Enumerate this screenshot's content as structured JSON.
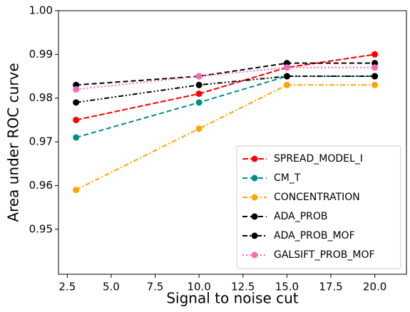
{
  "chart_data": {
    "type": "line",
    "x_label": "Signal to noise cut",
    "y_label": "Area under ROC curve",
    "x": [
      3,
      10,
      15,
      20
    ],
    "series": [
      {
        "name": "SPREAD_MODEL_I",
        "color": "#ff0000",
        "linestyle": "dashed-long",
        "values": [
          0.975,
          0.981,
          0.987,
          0.99
        ]
      },
      {
        "name": "CM_T",
        "color": "#008b8b",
        "linestyle": "dashed",
        "values": [
          0.971,
          0.979,
          0.985,
          0.985
        ]
      },
      {
        "name": "CONCENTRATION",
        "color": "#ffa500",
        "linestyle": "dashdot",
        "values": [
          0.959,
          0.973,
          0.983,
          0.983
        ]
      },
      {
        "name": "ADA_PROB",
        "color": "#000000",
        "linestyle": "dashed",
        "values": [
          0.983,
          0.985,
          0.988,
          0.988
        ]
      },
      {
        "name": "ADA_PROB_MOF",
        "color": "#000000",
        "linestyle": "dashdotdot",
        "values": [
          0.979,
          0.983,
          0.985,
          0.985
        ]
      },
      {
        "name": "GALSIFT_PROB_MOF",
        "color": "#ff69b4",
        "linestyle": "dotted",
        "values": [
          0.982,
          0.985,
          0.987,
          0.987
        ]
      }
    ],
    "xlim": [
      2.0,
      21.8
    ],
    "ylim": [
      0.9397,
      1.0
    ],
    "xticks": [
      2.5,
      {
        "value": 5,
        "label": "5.0"
      },
      7.5,
      {
        "value": 10,
        "label": "10.0"
      },
      12.5,
      {
        "value": 15,
        "label": "15.0"
      },
      17.5,
      {
        "value": 20,
        "label": "20.0"
      }
    ],
    "yticks": [
      0.95,
      0.96,
      0.97,
      0.98,
      0.99,
      {
        "value": 1,
        "label": "1.00"
      }
    ],
    "legend": "lower right",
    "grid": false
  }
}
